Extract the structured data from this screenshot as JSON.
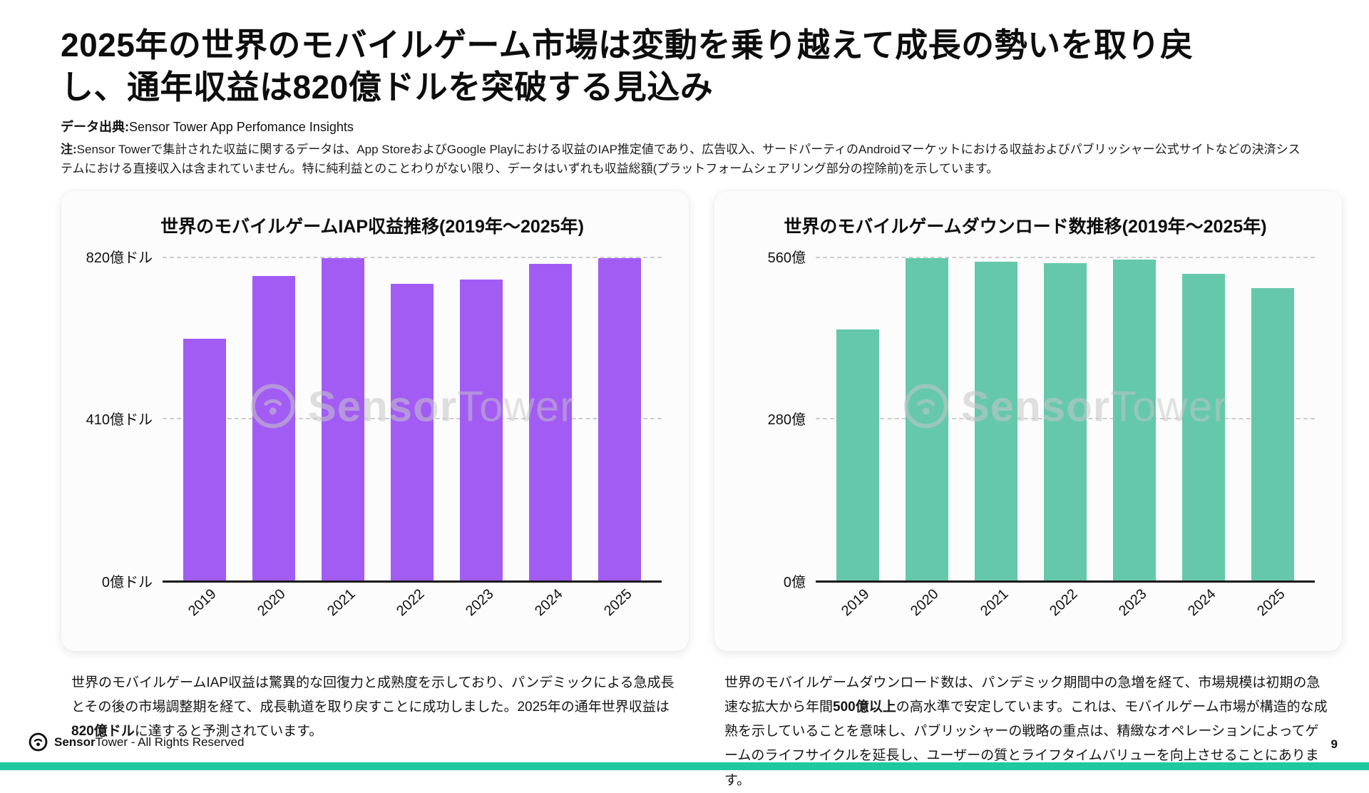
{
  "page": {
    "title": "2025年の世界のモバイルゲーム市場は変動を乗り越えて成長の勢いを取り戻し、通年収益は820億ドルを突破する見込み",
    "source_label": "データ出典:",
    "source_value": "Sensor Tower App Perfomance Insights",
    "note_label": "注:",
    "note_text": "Sensor Towerで集計された収益に関するデータは、App StoreおよびGoogle Playにおける収益のIAP推定値であり、広告収入、サードパーティのAndroidマーケットにおける収益およびパブリッシャー公式サイトなどの決済システムにおける直接収入は含まれていません。特に純利益とのことわりがない限り、データはいずれも収益総額(プラットフォームシェアリング部分の控除前)を示しています。",
    "page_number": "9"
  },
  "chart_data": [
    {
      "type": "bar",
      "title": "世界のモバイルゲームIAP収益推移(2019年〜2025年)",
      "categories": [
        "2019",
        "2020",
        "2021",
        "2022",
        "2023",
        "2024",
        "2025"
      ],
      "values": [
        615,
        775,
        820,
        755,
        765,
        805,
        820
      ],
      "unit": "億ドル",
      "ylim": [
        0,
        820
      ],
      "yticks": [
        {
          "value": 0,
          "label": "0億ドル"
        },
        {
          "value": 410,
          "label": "410億ドル"
        },
        {
          "value": 820,
          "label": "820億ドル"
        }
      ],
      "bar_color": "#a25cf4",
      "grid": "dashed-horizontal",
      "legend": "none"
    },
    {
      "type": "bar",
      "title": "世界のモバイルゲームダウンロード数推移(2019年〜2025年)",
      "categories": [
        "2019",
        "2020",
        "2021",
        "2022",
        "2023",
        "2024",
        "2025"
      ],
      "values": [
        436,
        560,
        554,
        551,
        557,
        533,
        508
      ],
      "unit": "億",
      "ylim": [
        0,
        560
      ],
      "yticks": [
        {
          "value": 0,
          "label": "0億"
        },
        {
          "value": 280,
          "label": "280億"
        },
        {
          "value": 560,
          "label": "560億"
        }
      ],
      "bar_color": "#65c8ab",
      "grid": "dashed-horizontal",
      "legend": "none"
    }
  ],
  "captions": [
    {
      "before": "世界のモバイルゲームIAP収益は驚異的な回復力と成熟度を示しており、パンデミックによる急成長とその後の市場調整期を経て、成長軌道を取り戻すことに成功しました。2025年の通年世界収益は",
      "bold": "820億ドル",
      "after": "に達すると予測されています。"
    },
    {
      "before": "世界のモバイルゲームダウンロード数は、パンデミック期間中の急増を経て、市場規模は初期の急速な拡大から年間",
      "bold": "500億以上",
      "after": "の高水準で安定しています。これは、モバイルゲーム市場が構造的な成熟を示していることを意味し、パブリッシャーの戦略の重点は、精緻なオペレーションによってゲームのライフサイクルを延長し、ユーザーの質とライフタイムバリューを向上させることにあります。"
    }
  ],
  "watermark": {
    "bold": "Sensor",
    "light": "Tower"
  },
  "footer": {
    "brand_bold": "Sensor",
    "brand_light": "Tower",
    "rights_text": " - All Rights Reserved"
  },
  "colors": {
    "revenue_bar": "#a25cf4",
    "downloads_bar": "#65c8ab",
    "bottom_strip": "#1ec9a2"
  }
}
